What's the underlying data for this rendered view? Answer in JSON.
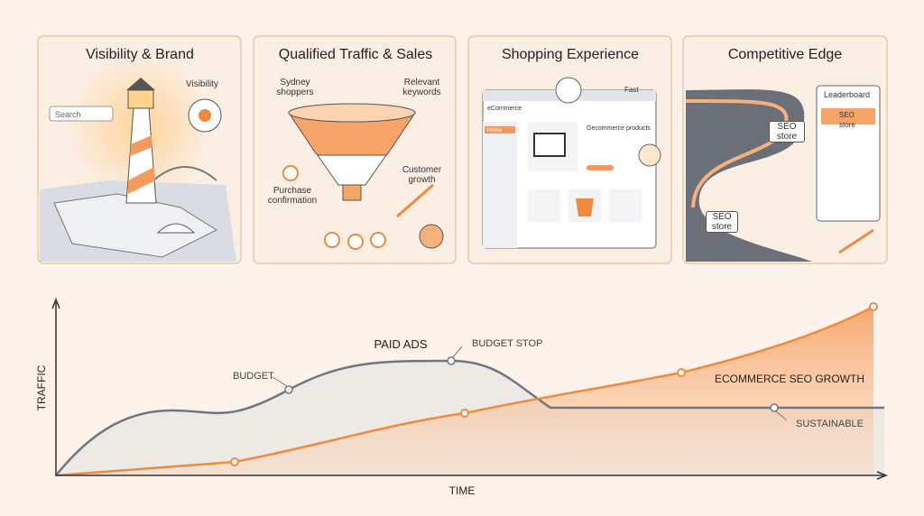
{
  "panels": [
    {
      "title": "Visibility & Brand",
      "labels": [
        "Search",
        "Visibility"
      ]
    },
    {
      "title": "Qualified Traffic & Sales",
      "labels": [
        "Sydney shoppers",
        "Relevant keywords",
        "Customer growth",
        "Purchase confirmation"
      ]
    },
    {
      "title": "Shopping Experience",
      "labels": [
        "eCommerce",
        "Home",
        "Fast",
        "Gecommerce products"
      ]
    },
    {
      "title": "Competitive Edge",
      "labels": [
        "Leaderboard",
        "SEO store",
        "SEO store",
        "SEO store"
      ]
    }
  ],
  "diagram": {
    "y_label": "TRAFFIC",
    "x_label": "TIME",
    "paid_label": "PAID ADS",
    "budget_label": "BUDGET",
    "budget_stop_label": "BUDGET STOP",
    "seo_label": "ECOMMERCE SEO GROWTH",
    "sustainable_label": "SUSTAINABLE"
  }
}
